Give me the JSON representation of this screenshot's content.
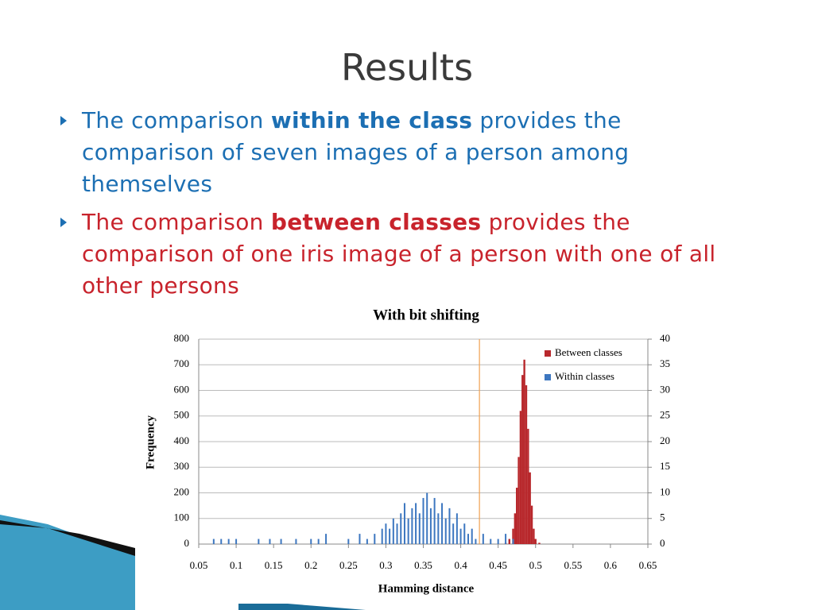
{
  "slide": {
    "title": "Results",
    "bullets": [
      {
        "before": "The comparison ",
        "bold": "within the class",
        "after": " provides the comparison of seven images of a person among themselves",
        "color": "#1c6fb3"
      },
      {
        "before": "The comparison ",
        "bold": "between classes",
        "after": " provides the comparison of one iris image of a person with one of all other persons",
        "color": "#c8232c"
      }
    ]
  },
  "chart_data": {
    "type": "histogram",
    "title": "With bit shifting",
    "xlabel": "Hamming distance",
    "ylabel": "Frequency",
    "xlim": [
      0.05,
      0.65
    ],
    "xticks": [
      0.05,
      0.1,
      0.15,
      0.2,
      0.25,
      0.3,
      0.35,
      0.4,
      0.45,
      0.5,
      0.55,
      0.6,
      0.65
    ],
    "ylim": [
      0,
      800
    ],
    "yticks": [
      0,
      100,
      200,
      300,
      400,
      500,
      600,
      700,
      800
    ],
    "y2lim": [
      0,
      40
    ],
    "y2ticks": [
      0,
      5,
      10,
      15,
      20,
      25,
      30,
      35,
      40
    ],
    "grid": true,
    "legend": "upper right",
    "reference_line": {
      "x": 0.425,
      "color": "#f0a050"
    },
    "series": [
      {
        "name": "Between classes",
        "color": "#b8282c",
        "x": [
          0.46,
          0.465,
          0.47,
          0.4725,
          0.475,
          0.4775,
          0.48,
          0.4825,
          0.485,
          0.4875,
          0.49,
          0.4925,
          0.495,
          0.4975,
          0.5,
          0.505
        ],
        "values": [
          5,
          20,
          60,
          120,
          220,
          340,
          520,
          660,
          720,
          620,
          450,
          280,
          150,
          60,
          20,
          5
        ]
      },
      {
        "name": "Within classes",
        "color": "#3d77c0",
        "axis": "y2",
        "x": [
          0.07,
          0.08,
          0.09,
          0.1,
          0.13,
          0.145,
          0.16,
          0.18,
          0.2,
          0.21,
          0.22,
          0.25,
          0.265,
          0.275,
          0.285,
          0.295,
          0.3,
          0.305,
          0.31,
          0.315,
          0.32,
          0.325,
          0.33,
          0.335,
          0.34,
          0.345,
          0.35,
          0.355,
          0.36,
          0.365,
          0.37,
          0.375,
          0.38,
          0.385,
          0.39,
          0.395,
          0.4,
          0.405,
          0.41,
          0.415,
          0.42,
          0.43,
          0.44,
          0.45,
          0.46,
          0.47
        ],
        "values": [
          1,
          1,
          1,
          1,
          1,
          1,
          1,
          1,
          1,
          1,
          2,
          1,
          2,
          1,
          2,
          3,
          4,
          3,
          5,
          4,
          6,
          8,
          5,
          7,
          8,
          6,
          9,
          10,
          7,
          9,
          6,
          8,
          5,
          7,
          4,
          6,
          3,
          4,
          2,
          3,
          1,
          2,
          1,
          1,
          2,
          1
        ]
      }
    ]
  }
}
